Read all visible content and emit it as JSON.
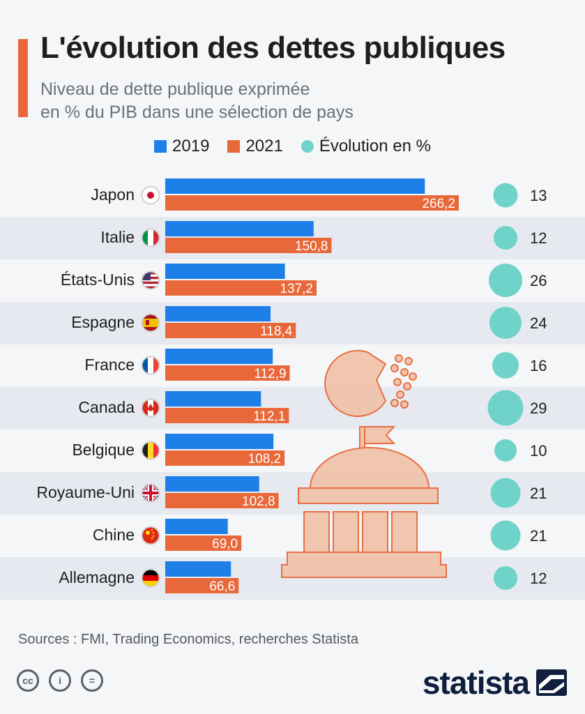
{
  "header": {
    "title": "L'évolution des dettes publiques",
    "subtitle_line1": "Niveau de dette publique exprimée",
    "subtitle_line2": "en % du PIB dans une sélection de pays"
  },
  "legend": {
    "s2019": "2019",
    "s2021": "2021",
    "evolution": "Évolution en %"
  },
  "colors": {
    "blue": "#1e7fe8",
    "orange": "#e8683a",
    "teal": "#6fd3c9",
    "stripe": "#e6eaf0",
    "illustration": "#f0c4ac"
  },
  "flags": [
    "flag-japan-icon",
    "flag-italy-icon",
    "flag-usa-icon",
    "flag-spain-icon",
    "flag-france-icon",
    "flag-canada-icon",
    "flag-belgium-icon",
    "flag-uk-icon",
    "flag-china-icon",
    "flag-germany-icon"
  ],
  "chart_data": {
    "type": "bar",
    "orientation": "horizontal",
    "categories": [
      "Japon",
      "Italie",
      "États-Unis",
      "Espagne",
      "France",
      "Canada",
      "Belgique",
      "Royaume-Uni",
      "Chine",
      "Allemagne"
    ],
    "series": [
      {
        "name": "2019",
        "values": [
          235.4,
          134.6,
          108.5,
          95.5,
          97.5,
          86.8,
          98.1,
          85.2,
          56.7,
          59.6
        ]
      },
      {
        "name": "2021",
        "values": [
          266.2,
          150.8,
          137.2,
          118.4,
          112.9,
          112.1,
          108.2,
          102.8,
          69.0,
          66.6
        ],
        "labels": [
          "266,2",
          "150,8",
          "137,2",
          "118,4",
          "112,9",
          "112,1",
          "108,2",
          "102,8",
          "69,0",
          "66,6"
        ]
      },
      {
        "name": "Évolution en %",
        "values": [
          13,
          12,
          26,
          24,
          16,
          29,
          10,
          21,
          21,
          12
        ]
      }
    ],
    "xlim": [
      0,
      300
    ]
  },
  "footer": {
    "source": "Sources : FMI, Trading Economics, recherches Statista",
    "brand": "statista"
  }
}
